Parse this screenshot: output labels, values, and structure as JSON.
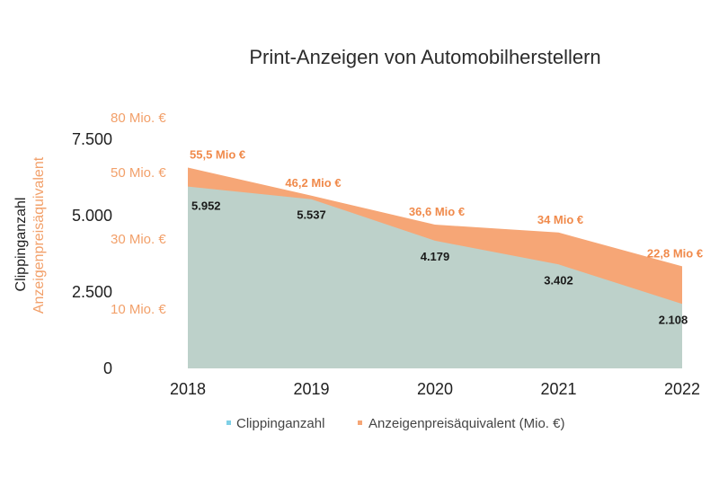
{
  "chart_data": {
    "type": "area",
    "title": "Print-Anzeigen von Automobilherstellern",
    "categories": [
      "2018",
      "2019",
      "2020",
      "2021",
      "2022"
    ],
    "series": [
      {
        "name": "Clippinganzahl",
        "axis": "left",
        "values": [
          5952,
          5537,
          4179,
          3402,
          2108
        ],
        "labels": [
          "5.952",
          "5.537",
          "4.179",
          "3.402",
          "2.108"
        ]
      },
      {
        "name": "Anzeigenpreisäquivalent (Mio. €)",
        "axis": "right",
        "values": [
          55.5,
          46.2,
          36.6,
          34,
          22.8
        ],
        "labels": [
          "55,5 Mio €",
          "46,2 Mio €",
          "36,6 Mio €",
          "34 Mio €",
          "22,8 Mio €"
        ]
      }
    ],
    "y_left": {
      "label": "Clippinganzahl",
      "ticks": [
        "0",
        "2.500",
        "5.000",
        "7.500"
      ],
      "tick_values": [
        0,
        2500,
        5000,
        7500
      ],
      "range": [
        0,
        7500
      ]
    },
    "y_right": {
      "label": "Anzeigenpreisäquivalent",
      "ticks": [
        "10 Mio. €",
        "30 Mio. €",
        "50 Mio. €",
        "80 Mio. €"
      ]
    },
    "legend": {
      "position": "bottom",
      "items": [
        "Clippinganzahl",
        "Anzeigenpreisäquivalent (Mio. €)"
      ]
    },
    "colors": {
      "clipping": "#bdd1ca",
      "clipping_marker": "#7fd0e6",
      "anzeigen": "#f6a676",
      "anzeigen_text": "#f08a4b",
      "axis_text": "#1f1f1f"
    }
  }
}
